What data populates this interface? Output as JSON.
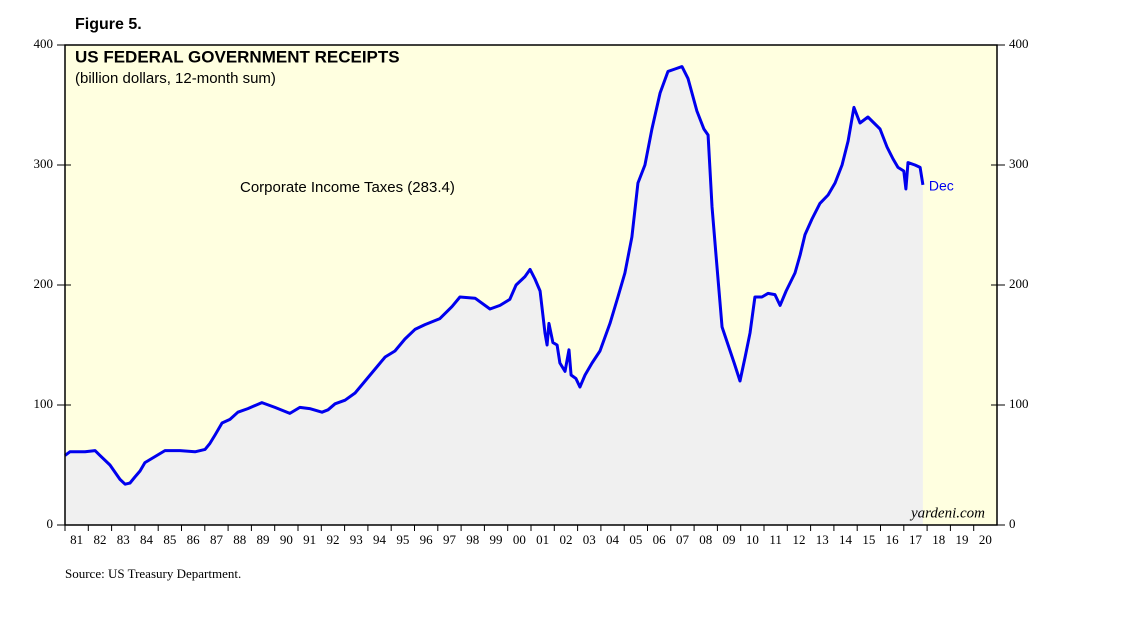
{
  "chart_data": {
    "type": "line",
    "figure_label": "Figure 5.",
    "title": "US FEDERAL GOVERNMENT RECEIPTS",
    "subtitle": "(billion dollars, 12-month sum)",
    "annotation": "Corporate Income Taxes (283.4)",
    "end_label": "Dec",
    "watermark": "yardeni.com",
    "source": "Source: US Treasury Department.",
    "xlim": [
      1981,
      2021
    ],
    "xticks": [
      {
        "value": 1981,
        "label": "81"
      },
      {
        "value": 1982,
        "label": "82"
      },
      {
        "value": 1983,
        "label": "83"
      },
      {
        "value": 1984,
        "label": "84"
      },
      {
        "value": 1985,
        "label": "85"
      },
      {
        "value": 1986,
        "label": "86"
      },
      {
        "value": 1987,
        "label": "87"
      },
      {
        "value": 1988,
        "label": "88"
      },
      {
        "value": 1989,
        "label": "89"
      },
      {
        "value": 1990,
        "label": "90"
      },
      {
        "value": 1991,
        "label": "91"
      },
      {
        "value": 1992,
        "label": "92"
      },
      {
        "value": 1993,
        "label": "93"
      },
      {
        "value": 1994,
        "label": "94"
      },
      {
        "value": 1995,
        "label": "95"
      },
      {
        "value": 1996,
        "label": "96"
      },
      {
        "value": 1997,
        "label": "97"
      },
      {
        "value": 1998,
        "label": "98"
      },
      {
        "value": 1999,
        "label": "99"
      },
      {
        "value": 2000,
        "label": "00"
      },
      {
        "value": 2001,
        "label": "01"
      },
      {
        "value": 2002,
        "label": "02"
      },
      {
        "value": 2003,
        "label": "03"
      },
      {
        "value": 2004,
        "label": "04"
      },
      {
        "value": 2005,
        "label": "05"
      },
      {
        "value": 2006,
        "label": "06"
      },
      {
        "value": 2007,
        "label": "07"
      },
      {
        "value": 2008,
        "label": "08"
      },
      {
        "value": 2009,
        "label": "09"
      },
      {
        "value": 2010,
        "label": "10"
      },
      {
        "value": 2011,
        "label": "11"
      },
      {
        "value": 2012,
        "label": "12"
      },
      {
        "value": 2013,
        "label": "13"
      },
      {
        "value": 2014,
        "label": "14"
      },
      {
        "value": 2015,
        "label": "15"
      },
      {
        "value": 2016,
        "label": "16"
      },
      {
        "value": 2017,
        "label": "17"
      },
      {
        "value": 2018,
        "label": "18"
      },
      {
        "value": 2019,
        "label": "19"
      },
      {
        "value": 2020,
        "label": "20"
      }
    ],
    "ylim": [
      0,
      400
    ],
    "yticks": [
      0,
      100,
      200,
      300,
      400
    ],
    "background": "#ffffe0",
    "fill_color": "#f0f0f0",
    "x": [
      1981.0,
      1981.21,
      1981.86,
      1982.29,
      1982.5,
      1982.93,
      1983.36,
      1983.58,
      1983.79,
      1984.0,
      1984.22,
      1984.43,
      1984.86,
      1985.29,
      1985.94,
      1986.58,
      1987.01,
      1987.22,
      1987.44,
      1987.74,
      1988.08,
      1988.42,
      1988.85,
      1989.45,
      1990.01,
      1990.65,
      1991.08,
      1991.5,
      1992.03,
      1992.29,
      1992.59,
      1993.02,
      1993.45,
      1993.88,
      1994.31,
      1994.74,
      1995.16,
      1995.59,
      1996.02,
      1996.45,
      1997.09,
      1997.61,
      1997.95,
      1998.6,
      1999.24,
      1999.67,
      2000.09,
      2000.36,
      2000.74,
      2000.96,
      2001.17,
      2001.39,
      2001.6,
      2001.69,
      2001.77,
      2001.94,
      2002.12,
      2002.24,
      2002.46,
      2002.63,
      2002.72,
      2002.93,
      2003.1,
      2003.32,
      2003.62,
      2003.96,
      2004.39,
      2004.73,
      2005.03,
      2005.33,
      2005.59,
      2005.89,
      2006.19,
      2006.54,
      2006.88,
      2007.18,
      2007.48,
      2007.74,
      2008.12,
      2008.42,
      2008.6,
      2008.77,
      2008.94,
      2009.2,
      2009.46,
      2009.72,
      2009.97,
      2010.19,
      2010.4,
      2010.61,
      2010.91,
      2011.17,
      2011.47,
      2011.69,
      2011.95,
      2012.33,
      2012.55,
      2012.76,
      2013.06,
      2013.4,
      2013.75,
      2014.05,
      2014.35,
      2014.61,
      2014.86,
      2015.12,
      2015.46,
      2015.72,
      2015.98,
      2016.28,
      2016.54,
      2016.75,
      2017.0,
      2017.09,
      2017.18,
      2017.48,
      2017.7,
      2017.82
    ],
    "series": [
      {
        "name": "Corporate Income Taxes",
        "color": "#0000ee",
        "values": [
          58,
          61,
          61,
          62,
          58,
          50,
          38,
          34,
          35,
          40,
          45,
          52,
          57,
          62,
          62,
          61,
          63,
          68,
          75,
          85,
          88,
          94,
          97,
          102,
          98,
          93,
          98,
          97,
          94,
          96,
          101,
          104,
          110,
          120,
          130,
          140,
          145,
          155,
          163,
          167,
          172,
          182,
          190,
          189,
          180,
          183,
          188,
          200,
          207,
          213,
          205,
          195,
          160,
          150,
          168,
          152,
          150,
          135,
          128,
          146,
          125,
          122,
          115,
          125,
          135,
          145,
          168,
          190,
          210,
          240,
          285,
          300,
          330,
          360,
          378,
          380,
          382,
          372,
          345,
          330,
          325,
          265,
          225,
          165,
          150,
          135,
          120,
          140,
          160,
          190,
          190,
          193,
          192,
          183,
          195,
          210,
          225,
          242,
          255,
          268,
          275,
          285,
          300,
          320,
          348,
          335,
          340,
          335,
          330,
          315,
          305,
          298,
          295,
          280,
          302,
          300,
          298,
          283.4
        ]
      }
    ]
  }
}
